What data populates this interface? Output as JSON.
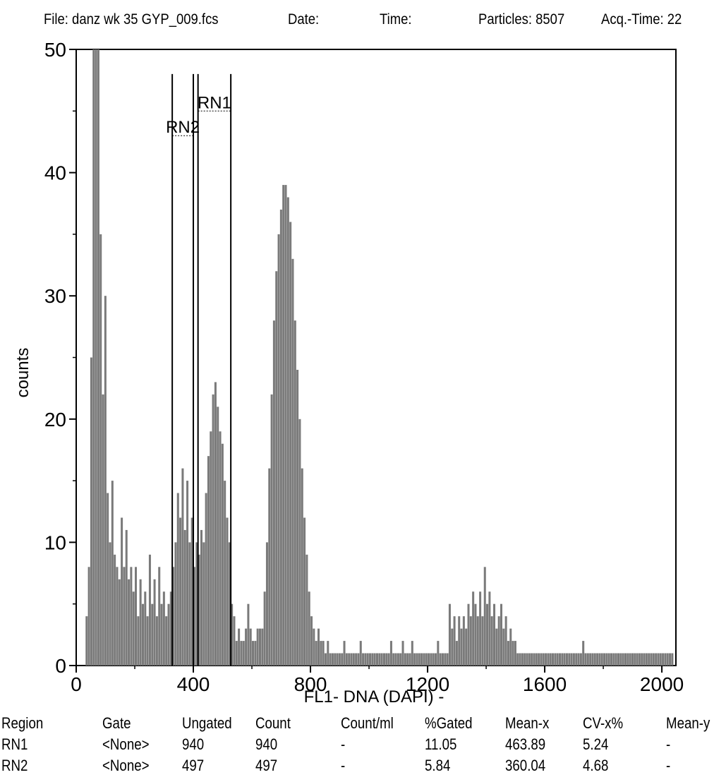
{
  "header": {
    "file": "File: danz wk 35 GYP_009.fcs",
    "date": "Date:",
    "time": "Time:",
    "particles": "Particles: 8507",
    "acq_time": "Acq.-Time: 22"
  },
  "chart_data": {
    "type": "bar",
    "title": "",
    "xlabel": "FL1- DNA (DAPI) -",
    "ylabel": "counts",
    "xlim": [
      0,
      2048
    ],
    "ylim": [
      0,
      50
    ],
    "x_ticks": [
      0,
      400,
      800,
      1200,
      1600,
      2000
    ],
    "y_ticks": [
      0,
      10,
      20,
      30,
      40,
      50
    ],
    "bin_width": 8,
    "series": [
      {
        "points": [
          [
            32,
            4
          ],
          [
            40,
            8
          ],
          [
            48,
            25
          ],
          [
            56,
            50
          ],
          [
            64,
            50
          ],
          [
            72,
            50
          ],
          [
            80,
            35
          ],
          [
            88,
            22
          ],
          [
            96,
            30
          ],
          [
            104,
            14
          ],
          [
            112,
            10
          ],
          [
            120,
            15
          ],
          [
            128,
            9
          ],
          [
            136,
            8
          ],
          [
            144,
            7
          ],
          [
            152,
            12
          ],
          [
            160,
            8
          ],
          [
            168,
            11
          ],
          [
            176,
            7
          ],
          [
            184,
            8
          ],
          [
            192,
            6
          ],
          [
            200,
            8
          ],
          [
            208,
            4
          ],
          [
            216,
            7
          ],
          [
            224,
            5
          ],
          [
            232,
            6
          ],
          [
            240,
            4
          ],
          [
            248,
            9
          ],
          [
            256,
            5
          ],
          [
            264,
            7
          ],
          [
            272,
            4
          ],
          [
            280,
            8
          ],
          [
            288,
            5
          ],
          [
            296,
            6
          ],
          [
            304,
            4
          ],
          [
            312,
            5
          ],
          [
            320,
            6
          ],
          [
            328,
            8
          ],
          [
            336,
            10
          ],
          [
            344,
            14
          ],
          [
            352,
            12
          ],
          [
            360,
            16
          ],
          [
            368,
            11
          ],
          [
            376,
            15
          ],
          [
            384,
            10
          ],
          [
            392,
            12
          ],
          [
            400,
            8
          ],
          [
            408,
            10
          ],
          [
            416,
            9
          ],
          [
            424,
            11
          ],
          [
            432,
            10
          ],
          [
            440,
            14
          ],
          [
            448,
            17
          ],
          [
            456,
            19
          ],
          [
            464,
            22
          ],
          [
            472,
            23
          ],
          [
            480,
            21
          ],
          [
            488,
            19
          ],
          [
            496,
            18
          ],
          [
            504,
            15
          ],
          [
            512,
            12
          ],
          [
            520,
            10
          ],
          [
            528,
            5
          ],
          [
            536,
            4
          ],
          [
            544,
            2
          ],
          [
            552,
            3
          ],
          [
            560,
            2
          ],
          [
            568,
            2
          ],
          [
            576,
            3
          ],
          [
            584,
            5
          ],
          [
            592,
            3
          ],
          [
            600,
            2
          ],
          [
            608,
            2
          ],
          [
            616,
            3
          ],
          [
            624,
            3
          ],
          [
            632,
            3
          ],
          [
            640,
            6
          ],
          [
            648,
            10
          ],
          [
            656,
            16
          ],
          [
            664,
            22
          ],
          [
            672,
            28
          ],
          [
            680,
            32
          ],
          [
            688,
            35
          ],
          [
            696,
            37
          ],
          [
            704,
            39
          ],
          [
            712,
            39
          ],
          [
            720,
            38
          ],
          [
            728,
            36
          ],
          [
            736,
            33
          ],
          [
            744,
            28
          ],
          [
            752,
            24
          ],
          [
            760,
            20
          ],
          [
            768,
            16
          ],
          [
            776,
            12
          ],
          [
            784,
            9
          ],
          [
            792,
            6
          ],
          [
            800,
            4
          ],
          [
            808,
            3
          ],
          [
            816,
            2
          ],
          [
            824,
            3
          ],
          [
            832,
            2
          ],
          [
            840,
            2
          ],
          [
            848,
            1
          ],
          [
            856,
            2
          ],
          [
            864,
            1
          ],
          [
            872,
            1
          ],
          [
            880,
            1
          ],
          [
            888,
            1
          ],
          [
            896,
            1
          ],
          [
            904,
            1
          ],
          [
            912,
            2
          ],
          [
            920,
            1
          ],
          [
            928,
            1
          ],
          [
            936,
            1
          ],
          [
            944,
            1
          ],
          [
            952,
            1
          ],
          [
            960,
            1
          ],
          [
            968,
            2
          ],
          [
            976,
            1
          ],
          [
            984,
            1
          ],
          [
            992,
            1
          ],
          [
            1000,
            1
          ],
          [
            1008,
            1
          ],
          [
            1016,
            1
          ],
          [
            1024,
            1
          ],
          [
            1032,
            1
          ],
          [
            1040,
            1
          ],
          [
            1048,
            1
          ],
          [
            1056,
            1
          ],
          [
            1064,
            1
          ],
          [
            1072,
            2
          ],
          [
            1080,
            1
          ],
          [
            1088,
            1
          ],
          [
            1096,
            1
          ],
          [
            1104,
            1
          ],
          [
            1112,
            2
          ],
          [
            1120,
            1
          ],
          [
            1128,
            1
          ],
          [
            1136,
            1
          ],
          [
            1144,
            2
          ],
          [
            1152,
            1
          ],
          [
            1160,
            1
          ],
          [
            1168,
            1
          ],
          [
            1176,
            1
          ],
          [
            1184,
            1
          ],
          [
            1192,
            1
          ],
          [
            1200,
            1
          ],
          [
            1208,
            1
          ],
          [
            1216,
            1
          ],
          [
            1224,
            1
          ],
          [
            1232,
            2
          ],
          [
            1240,
            1
          ],
          [
            1248,
            1
          ],
          [
            1256,
            1
          ],
          [
            1264,
            1
          ],
          [
            1272,
            5
          ],
          [
            1280,
            3
          ],
          [
            1288,
            4
          ],
          [
            1296,
            2
          ],
          [
            1304,
            4
          ],
          [
            1312,
            3
          ],
          [
            1320,
            4
          ],
          [
            1328,
            3
          ],
          [
            1336,
            5
          ],
          [
            1344,
            4
          ],
          [
            1352,
            6
          ],
          [
            1360,
            5
          ],
          [
            1368,
            4
          ],
          [
            1376,
            6
          ],
          [
            1384,
            4
          ],
          [
            1392,
            8
          ],
          [
            1400,
            5
          ],
          [
            1408,
            6
          ],
          [
            1416,
            4
          ],
          [
            1424,
            5
          ],
          [
            1432,
            3
          ],
          [
            1440,
            4
          ],
          [
            1448,
            5
          ],
          [
            1456,
            3
          ],
          [
            1464,
            4
          ],
          [
            1472,
            2
          ],
          [
            1480,
            3
          ],
          [
            1488,
            2
          ],
          [
            1496,
            2
          ],
          [
            1504,
            1
          ],
          [
            1512,
            1
          ],
          [
            1520,
            1
          ],
          [
            1528,
            1
          ],
          [
            1536,
            1
          ],
          [
            1544,
            1
          ],
          [
            1552,
            1
          ],
          [
            1560,
            1
          ],
          [
            1568,
            1
          ],
          [
            1576,
            1
          ],
          [
            1584,
            1
          ],
          [
            1592,
            1
          ],
          [
            1600,
            1
          ],
          [
            1608,
            1
          ],
          [
            1616,
            1
          ],
          [
            1624,
            1
          ],
          [
            1632,
            1
          ],
          [
            1640,
            1
          ],
          [
            1648,
            1
          ],
          [
            1656,
            1
          ],
          [
            1664,
            1
          ],
          [
            1672,
            1
          ],
          [
            1680,
            1
          ],
          [
            1688,
            1
          ],
          [
            1696,
            1
          ],
          [
            1704,
            1
          ],
          [
            1712,
            1
          ],
          [
            1720,
            1
          ],
          [
            1728,
            2
          ],
          [
            1736,
            1
          ],
          [
            1744,
            1
          ],
          [
            1752,
            1
          ],
          [
            1760,
            1
          ],
          [
            1768,
            1
          ],
          [
            1776,
            1
          ],
          [
            1784,
            1
          ],
          [
            1792,
            1
          ],
          [
            1800,
            1
          ],
          [
            1808,
            1
          ],
          [
            1816,
            1
          ],
          [
            1824,
            1
          ],
          [
            1832,
            1
          ],
          [
            1840,
            1
          ],
          [
            1848,
            1
          ],
          [
            1856,
            1
          ],
          [
            1864,
            1
          ],
          [
            1872,
            1
          ],
          [
            1880,
            1
          ],
          [
            1888,
            1
          ],
          [
            1896,
            1
          ],
          [
            1904,
            1
          ],
          [
            1912,
            1
          ],
          [
            1920,
            1
          ],
          [
            1928,
            1
          ],
          [
            1936,
            1
          ],
          [
            1944,
            1
          ],
          [
            1952,
            1
          ],
          [
            1960,
            1
          ],
          [
            1968,
            1
          ],
          [
            1976,
            1
          ],
          [
            1984,
            1
          ],
          [
            1992,
            1
          ],
          [
            2000,
            1
          ],
          [
            2008,
            1
          ],
          [
            2016,
            1
          ],
          [
            2024,
            1
          ],
          [
            2032,
            1
          ]
        ]
      }
    ],
    "regions": [
      {
        "name": "RN1",
        "x_start": 416,
        "x_end": 528
      },
      {
        "name": "RN2",
        "x_start": 328,
        "x_end": 400
      }
    ]
  },
  "stats": {
    "columns": [
      "Region",
      "Gate",
      "Ungated",
      "Count",
      "Count/ml",
      "%Gated",
      "Mean-x",
      "CV-x%",
      "Mean-y"
    ],
    "rows": [
      [
        "RN1",
        "<None>",
        "940",
        "940",
        "-",
        "11.05",
        "463.89",
        "5.24",
        "-"
      ],
      [
        "RN2",
        "<None>",
        "497",
        "497",
        "-",
        "5.84",
        "360.04",
        "4.68",
        "-"
      ]
    ]
  }
}
